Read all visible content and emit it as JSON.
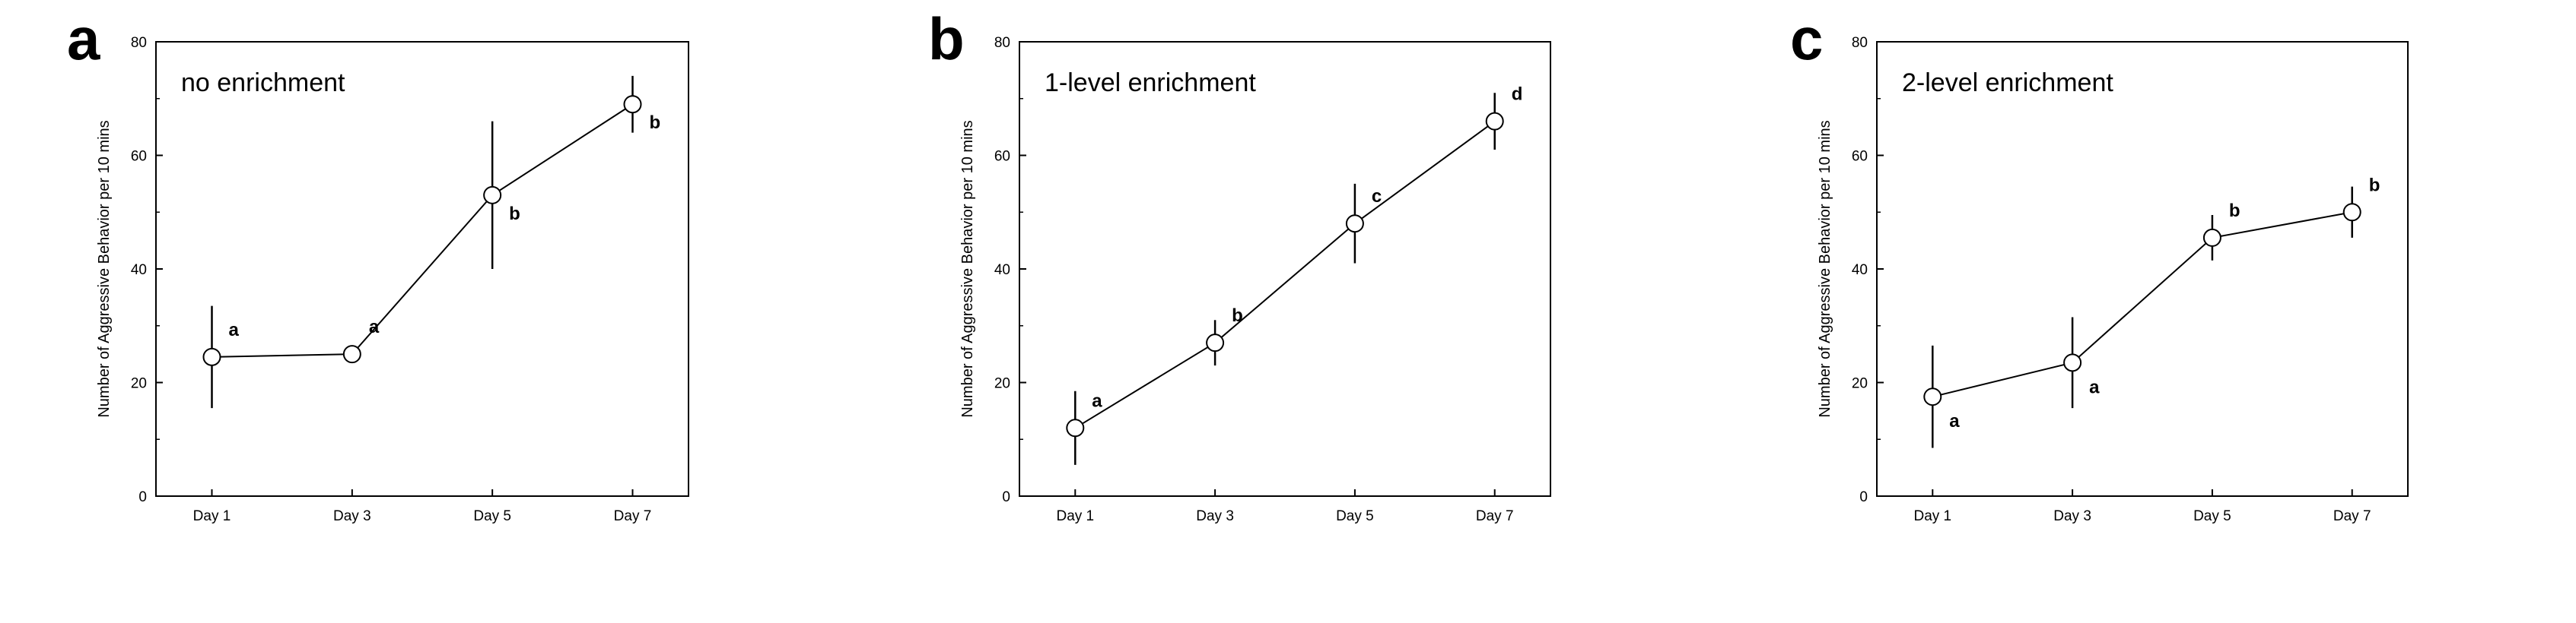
{
  "chart_data": [
    {
      "type": "line",
      "panel_label": "a",
      "title": "no enrichment",
      "xlabel": "",
      "ylabel": "Number of Aggressive Behavior per 10 mins",
      "categories": [
        "Day 1",
        "Day 3",
        "Day 5",
        "Day 7"
      ],
      "yticks": [
        "0",
        "20",
        "40",
        "60",
        "80"
      ],
      "ylim": [
        0,
        80
      ],
      "values": [
        24.5,
        25,
        53,
        69
      ],
      "errors": [
        9,
        1,
        13,
        5
      ],
      "significance": [
        "a",
        "a",
        "b",
        "b"
      ],
      "marker": "open-circle",
      "grid": false
    },
    {
      "type": "line",
      "panel_label": "b",
      "title": "1-level enrichment",
      "xlabel": "",
      "ylabel": "Number of Aggressive Behavior per 10 mins",
      "categories": [
        "Day 1",
        "Day 3",
        "Day 5",
        "Day 7"
      ],
      "yticks": [
        "0",
        "20",
        "40",
        "60",
        "80"
      ],
      "ylim": [
        0,
        80
      ],
      "values": [
        12,
        27,
        48,
        66
      ],
      "errors": [
        6.5,
        4,
        7,
        5
      ],
      "significance": [
        "a",
        "b",
        "c",
        "d"
      ],
      "marker": "open-circle",
      "grid": false
    },
    {
      "type": "line",
      "panel_label": "c",
      "title": "2-level enrichment",
      "xlabel": "",
      "ylabel": "Number of Aggressive Behavior per 10 mins",
      "categories": [
        "Day 1",
        "Day 3",
        "Day 5",
        "Day 7"
      ],
      "yticks": [
        "0",
        "20",
        "40",
        "60",
        "80"
      ],
      "ylim": [
        0,
        80
      ],
      "values": [
        17.5,
        23.5,
        45.5,
        50
      ],
      "errors": [
        9,
        8,
        4,
        4.5
      ],
      "significance": [
        "a",
        "a",
        "b",
        "b"
      ],
      "marker": "open-circle",
      "grid": false
    }
  ]
}
